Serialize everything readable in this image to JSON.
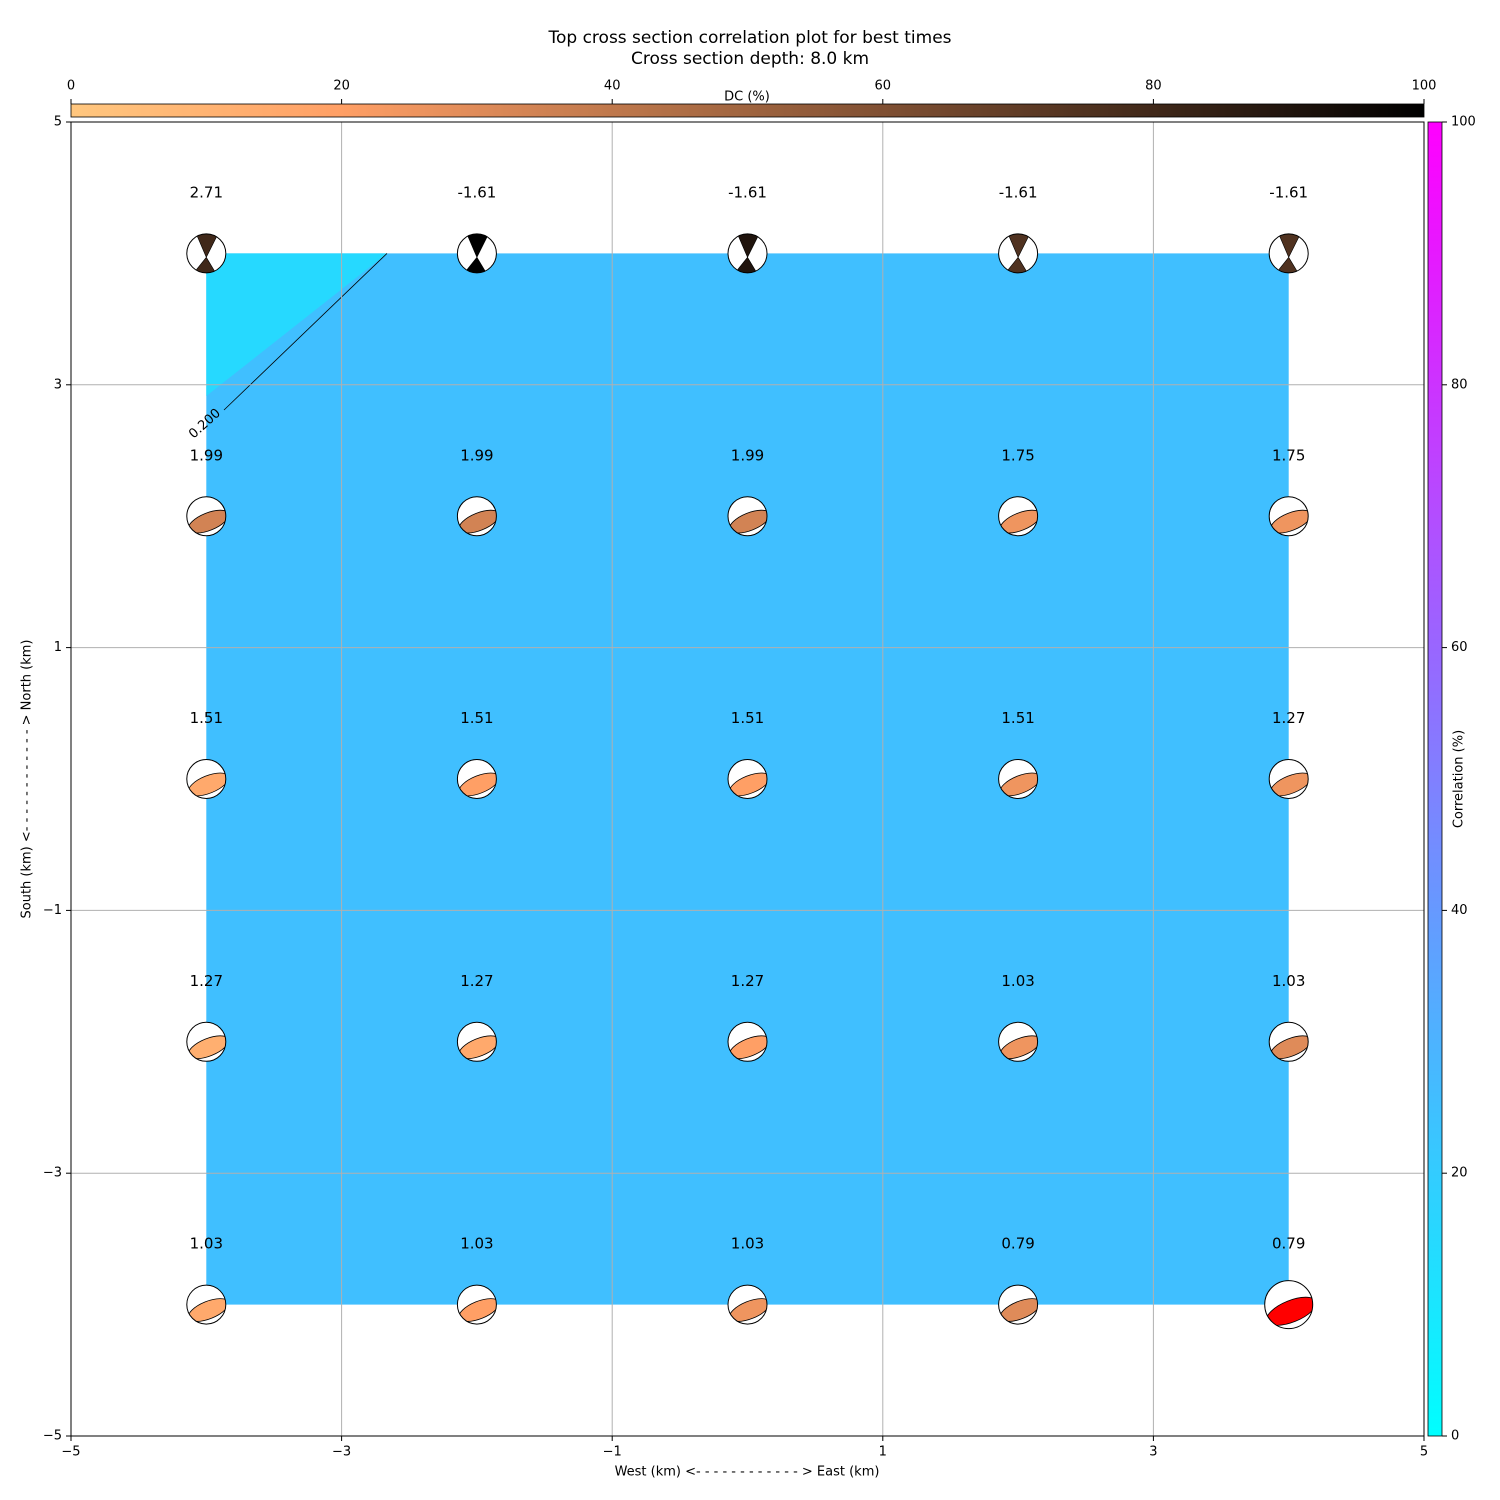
{
  "chart_data": {
    "type": "beachball-grid",
    "title": "Top cross section correlation plot for best times",
    "subtitle": "Cross section depth: 8.0 km",
    "x_label": "West (km) <- - - - - - - - - - - - > East (km)",
    "y_label": "South (km) <- - - - - - - - - - - - > North (km)",
    "xlim": [
      -5,
      5
    ],
    "ylim": [
      -5,
      5
    ],
    "xticks": [
      {
        "value": -5,
        "label": "−5"
      },
      {
        "value": -3,
        "label": "−3"
      },
      {
        "value": -1,
        "label": "−1"
      },
      1,
      3,
      5
    ],
    "yticks": [
      {
        "value": -5,
        "label": "−5"
      },
      {
        "value": -3,
        "label": "−3"
      },
      {
        "value": -1,
        "label": "−1"
      },
      1,
      3,
      5
    ],
    "grid": true,
    "points": {
      "x": [
        -4,
        -2,
        0,
        2,
        4,
        -4,
        -2,
        0,
        2,
        4,
        -4,
        -2,
        0,
        2,
        4,
        -4,
        -2,
        0,
        2,
        4,
        -4,
        -2,
        0,
        2,
        4
      ],
      "y": [
        4,
        4,
        4,
        4,
        4,
        2,
        2,
        2,
        2,
        2,
        0,
        0,
        0,
        0,
        0,
        -2,
        -2,
        -2,
        -2,
        -2,
        -4,
        -4,
        -4,
        -4,
        -4
      ],
      "values": [
        2.71,
        -1.61,
        -1.61,
        -1.61,
        -1.61,
        1.99,
        1.99,
        1.99,
        1.75,
        1.75,
        1.51,
        1.51,
        1.51,
        1.51,
        1.27,
        1.27,
        1.27,
        1.27,
        1.03,
        1.03,
        1.03,
        1.03,
        1.03,
        0.79,
        0.79
      ],
      "dc": [
        80,
        100,
        90,
        75,
        75,
        34,
        34,
        34,
        25,
        25,
        15,
        20,
        20,
        25,
        25,
        12,
        15,
        20,
        25,
        30,
        15,
        20,
        25,
        30,
        30
      ]
    },
    "highlight": {
      "index": 24,
      "color": "#ff0000"
    },
    "dc_colorbar": {
      "label": "DC (%)",
      "colormap": "copper_r",
      "lim": [
        0,
        100
      ],
      "ticks": [
        0,
        20,
        40,
        60,
        80,
        100
      ]
    },
    "correlation_colorbar": {
      "label": "Correlation (%)",
      "colormap": "cool",
      "lim": [
        0,
        100
      ],
      "ticks": [
        0,
        20,
        40,
        60,
        80,
        100
      ]
    },
    "field": {
      "values": [
        25,
        15
      ]
    },
    "contour": {
      "label": "0.200"
    }
  }
}
